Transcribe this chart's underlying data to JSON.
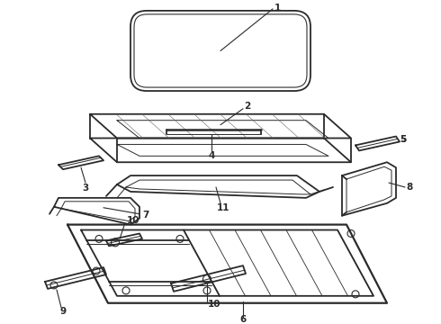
{
  "background_color": "#ffffff",
  "line_color": "#2a2a2a",
  "label_color": "#000000",
  "figsize": [
    4.9,
    3.6
  ],
  "dpi": 100,
  "lw_main": 1.3,
  "lw_thin": 0.7,
  "label_fs": 7.5
}
